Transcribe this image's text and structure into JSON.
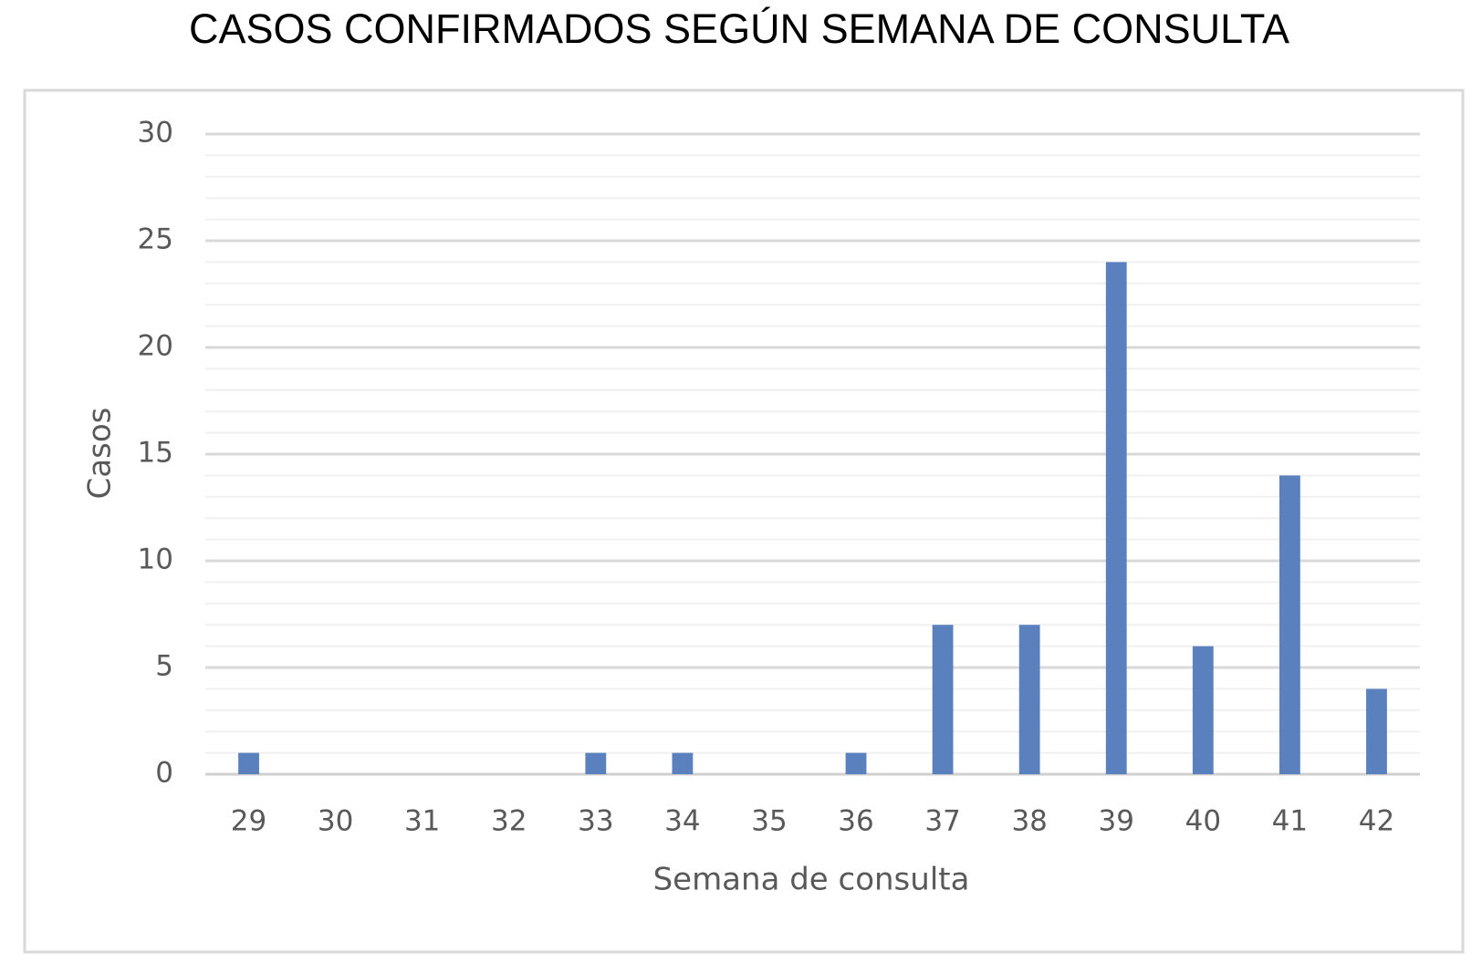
{
  "chart_data": {
    "type": "bar",
    "title": "CASOS CONFIRMADOS SEGÚN SEMANA DE CONSULTA",
    "x_label": "Semana de consulta",
    "y_label": "Casos",
    "categories": [
      "29",
      "30",
      "31",
      "32",
      "33",
      "34",
      "35",
      "36",
      "37",
      "38",
      "39",
      "40",
      "41",
      "42"
    ],
    "values": [
      1,
      0,
      0,
      0,
      1,
      1,
      0,
      1,
      7,
      7,
      24,
      6,
      14,
      4
    ],
    "color": "#5a80bd",
    "ylim": [
      0,
      30
    ],
    "yticks": [
      0,
      5,
      10,
      15,
      20,
      25,
      30
    ],
    "grid": true,
    "minor_step": 1
  }
}
